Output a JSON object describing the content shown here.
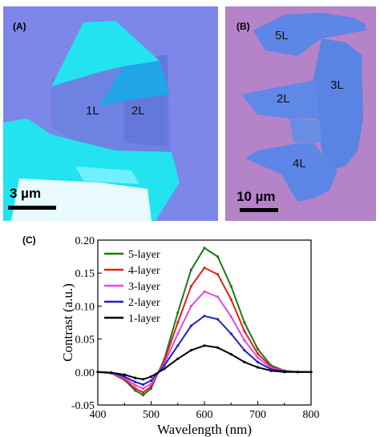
{
  "panels": {
    "a": {
      "label": "(A)",
      "flake_labels": [
        "1L",
        "2L"
      ],
      "scale_bar": "3 µm",
      "colors": {
        "substrate": "#7d86e9",
        "bulk": "#22e3ef",
        "thin": "#6e82e2"
      }
    },
    "b": {
      "label": "(B)",
      "flake_labels": [
        "5L",
        "3L",
        "2L",
        "4L"
      ],
      "scale_bar": "10 µm",
      "colors": {
        "substrate": "#b583c8",
        "flake": "#5d86e6"
      }
    },
    "c": {
      "label": "(C)"
    }
  },
  "chart_data": {
    "type": "line",
    "xlabel": "Wavelength (nm)",
    "ylabel": "Contrast (a.u.)",
    "xlim": [
      400,
      800
    ],
    "ylim": [
      -0.05,
      0.2
    ],
    "xticks": [
      400,
      500,
      600,
      700,
      800
    ],
    "yticks": [
      -0.05,
      0.0,
      0.05,
      0.1,
      0.15,
      0.2
    ],
    "ytick_labels": [
      "-0.05",
      "0.00",
      "0.05",
      "0.10",
      "0.15",
      "0.20"
    ],
    "legend_position": "top-left",
    "x": [
      400,
      425,
      450,
      470,
      485,
      500,
      525,
      550,
      575,
      600,
      625,
      650,
      675,
      700,
      725,
      750,
      775,
      800
    ],
    "series": [
      {
        "name": "5-layer",
        "color": "#1a7a1a",
        "values": [
          0.0,
          -0.002,
          -0.012,
          -0.028,
          -0.035,
          -0.025,
          0.02,
          0.09,
          0.155,
          0.188,
          0.175,
          0.13,
          0.075,
          0.035,
          0.01,
          0.002,
          0.0,
          0.0
        ]
      },
      {
        "name": "4-layer",
        "color": "#e0201b",
        "values": [
          0.0,
          -0.002,
          -0.011,
          -0.025,
          -0.031,
          -0.022,
          0.017,
          0.075,
          0.13,
          0.158,
          0.148,
          0.11,
          0.062,
          0.028,
          0.008,
          0.002,
          0.0,
          0.0
        ]
      },
      {
        "name": "3-layer",
        "color": "#e844e8",
        "values": [
          0.0,
          -0.002,
          -0.009,
          -0.02,
          -0.025,
          -0.018,
          0.013,
          0.058,
          0.1,
          0.122,
          0.114,
          0.084,
          0.048,
          0.022,
          0.006,
          0.001,
          0.0,
          0.0
        ]
      },
      {
        "name": "2-layer",
        "color": "#2020c8",
        "values": [
          0.0,
          -0.001,
          -0.007,
          -0.015,
          -0.019,
          -0.013,
          0.01,
          0.04,
          0.07,
          0.085,
          0.08,
          0.058,
          0.033,
          0.015,
          0.004,
          0.001,
          0.0,
          0.0
        ]
      },
      {
        "name": "1-layer",
        "color": "#000000",
        "values": [
          0.0,
          -0.001,
          -0.004,
          -0.009,
          -0.011,
          -0.007,
          0.005,
          0.02,
          0.033,
          0.04,
          0.037,
          0.027,
          0.015,
          0.007,
          0.002,
          0.0,
          0.0,
          0.0
        ]
      }
    ]
  }
}
